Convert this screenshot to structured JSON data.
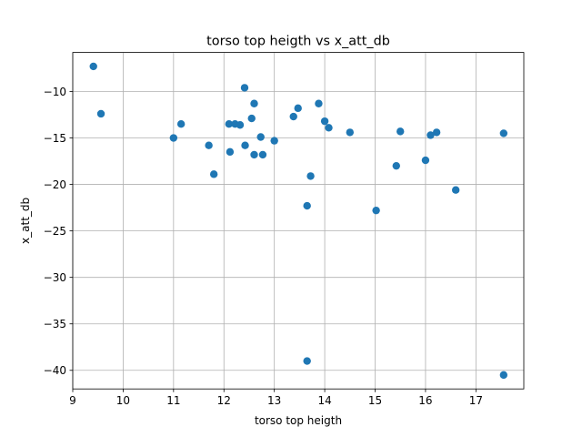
{
  "chart_data": {
    "type": "scatter",
    "title": "torso top heigth vs x_att_db",
    "xlabel": "torso top heigth",
    "ylabel": "x_att_db",
    "xlim": [
      9.0,
      17.95
    ],
    "ylim": [
      -42.0,
      -5.8
    ],
    "xticks": [
      9,
      10,
      11,
      12,
      13,
      14,
      15,
      16,
      17
    ],
    "xtick_labels": [
      "9",
      "10",
      "11",
      "12",
      "13",
      "14",
      "15",
      "16",
      "17"
    ],
    "yticks": [
      -40,
      -35,
      -30,
      -25,
      -20,
      -15,
      -10
    ],
    "ytick_labels": [
      "−40",
      "−35",
      "−30",
      "−25",
      "−20",
      "−15",
      "−10"
    ],
    "grid": true,
    "legend": "none",
    "colors": {
      "marker": "#1f77b4",
      "grid": "#b0b0b0",
      "axes": "#000000"
    },
    "series": [
      {
        "points": [
          {
            "x": 9.41,
            "y": -7.3
          },
          {
            "x": 9.56,
            "y": -12.4
          },
          {
            "x": 11.0,
            "y": -15.0
          },
          {
            "x": 11.15,
            "y": -13.5
          },
          {
            "x": 11.7,
            "y": -15.8
          },
          {
            "x": 11.8,
            "y": -18.9
          },
          {
            "x": 12.1,
            "y": -13.5
          },
          {
            "x": 12.12,
            "y": -16.5
          },
          {
            "x": 12.22,
            "y": -13.5
          },
          {
            "x": 12.32,
            "y": -13.6
          },
          {
            "x": 12.41,
            "y": -9.6
          },
          {
            "x": 12.42,
            "y": -15.8
          },
          {
            "x": 12.55,
            "y": -12.9
          },
          {
            "x": 12.6,
            "y": -11.3
          },
          {
            "x": 12.6,
            "y": -16.8
          },
          {
            "x": 12.73,
            "y": -14.9
          },
          {
            "x": 12.77,
            "y": -16.8
          },
          {
            "x": 13.0,
            "y": -15.3
          },
          {
            "x": 13.38,
            "y": -12.7
          },
          {
            "x": 13.47,
            "y": -11.8
          },
          {
            "x": 13.65,
            "y": -22.3
          },
          {
            "x": 13.65,
            "y": -39.0
          },
          {
            "x": 13.72,
            "y": -19.1
          },
          {
            "x": 13.88,
            "y": -11.3
          },
          {
            "x": 14.0,
            "y": -13.2
          },
          {
            "x": 14.08,
            "y": -13.9
          },
          {
            "x": 14.5,
            "y": -14.4
          },
          {
            "x": 15.02,
            "y": -22.8
          },
          {
            "x": 15.42,
            "y": -18.0
          },
          {
            "x": 15.5,
            "y": -14.3
          },
          {
            "x": 16.0,
            "y": -17.4
          },
          {
            "x": 16.1,
            "y": -14.7
          },
          {
            "x": 16.22,
            "y": -14.4
          },
          {
            "x": 16.6,
            "y": -20.6
          },
          {
            "x": 17.55,
            "y": -14.5
          },
          {
            "x": 17.55,
            "y": -40.5
          }
        ]
      }
    ]
  }
}
